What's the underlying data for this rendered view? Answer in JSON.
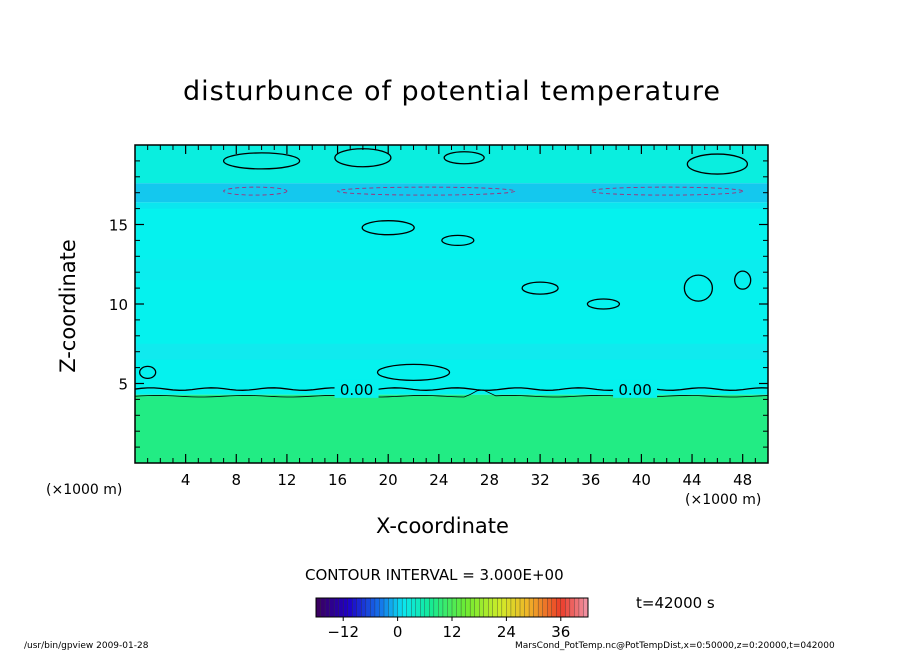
{
  "chart_data": {
    "type": "heatmap",
    "title": "disturbunce of potential temperature",
    "xlabel": "X-coordinate",
    "ylabel": "Z-coordinate",
    "x_unit": "(×1000 m)",
    "xlim": [
      0,
      50
    ],
    "ylim": [
      0,
      20
    ],
    "x_ticks": [
      4,
      8,
      12,
      16,
      20,
      24,
      28,
      32,
      36,
      40,
      44,
      48
    ],
    "y_ticks": [
      5,
      10,
      15
    ],
    "contour_interval": "CONTOUR INTERVAL = 3.000E+00",
    "contour_labels": [
      {
        "text": "0.00",
        "x": 17.5,
        "z": 4.6
      },
      {
        "text": "0.00",
        "x": 39.5,
        "z": 4.6
      }
    ],
    "colorbar": {
      "min": -18,
      "max": 42,
      "tick_values": [
        -12,
        0,
        12,
        24,
        36
      ],
      "tick_labels": [
        "−12",
        "0",
        "12",
        "24",
        "36"
      ]
    },
    "time": "t=42000 s",
    "regions": [
      {
        "z_from": 0,
        "z_to": 4.3,
        "value": 6,
        "color": "#22ec84"
      },
      {
        "z_from": 4.3,
        "z_to": 16.4,
        "value": 0,
        "color": "#05f2ee"
      },
      {
        "z_from": 16.4,
        "z_to": 17.6,
        "value": -3,
        "color": "#14c8ee"
      },
      {
        "z_from": 17.6,
        "z_to": 20,
        "value": 0,
        "color": "#0aeedf"
      }
    ]
  },
  "footer": {
    "left": "/usr/bin/gpview   2009-01-28",
    "right": "MarsCond_PotTemp.nc@PotTempDist,x=0:50000,z=0:20000,t=042000"
  }
}
